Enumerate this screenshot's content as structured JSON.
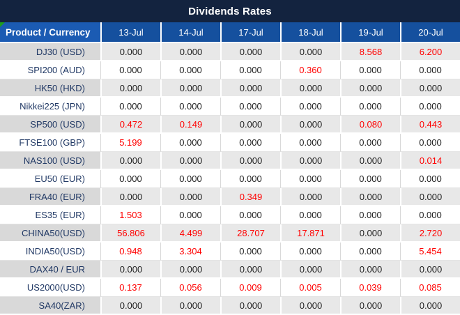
{
  "title": "Dividends Rates",
  "colors": {
    "title_bg": "#13233F",
    "header_bg": "#15509E",
    "product_header_bg": "#1B5BB3",
    "row_gray": "#E8E8E8",
    "product_gray": "#D9D9D9",
    "product_text": "#203864",
    "value_red": "#FF0000",
    "flag_green": "#1E9E1E"
  },
  "table": {
    "header": [
      "Product / Currency",
      "13-Jul",
      "14-Jul",
      "17-Jul",
      "18-Jul",
      "19-Jul",
      "20-Jul"
    ],
    "rows": [
      {
        "product": "DJ30 (USD)",
        "values": [
          "0.000",
          "0.000",
          "0.000",
          "0.000",
          "8.568",
          "6.200"
        ]
      },
      {
        "product": "SPI200 (AUD)",
        "values": [
          "0.000",
          "0.000",
          "0.000",
          "0.360",
          "0.000",
          "0.000"
        ]
      },
      {
        "product": "HK50 (HKD)",
        "values": [
          "0.000",
          "0.000",
          "0.000",
          "0.000",
          "0.000",
          "0.000"
        ]
      },
      {
        "product": "Nikkei225 (JPN)",
        "values": [
          "0.000",
          "0.000",
          "0.000",
          "0.000",
          "0.000",
          "0.000"
        ]
      },
      {
        "product": "SP500 (USD)",
        "values": [
          "0.472",
          "0.149",
          "0.000",
          "0.000",
          "0.080",
          "0.443"
        ]
      },
      {
        "product": "FTSE100 (GBP)",
        "values": [
          "5.199",
          "0.000",
          "0.000",
          "0.000",
          "0.000",
          "0.000"
        ]
      },
      {
        "product": "NAS100 (USD)",
        "values": [
          "0.000",
          "0.000",
          "0.000",
          "0.000",
          "0.000",
          "0.014"
        ]
      },
      {
        "product": "EU50 (EUR)",
        "values": [
          "0.000",
          "0.000",
          "0.000",
          "0.000",
          "0.000",
          "0.000"
        ]
      },
      {
        "product": "FRA40 (EUR)",
        "values": [
          "0.000",
          "0.000",
          "0.349",
          "0.000",
          "0.000",
          "0.000"
        ]
      },
      {
        "product": "ES35 (EUR)",
        "values": [
          "1.503",
          "0.000",
          "0.000",
          "0.000",
          "0.000",
          "0.000"
        ]
      },
      {
        "product": "CHINA50(USD)",
        "values": [
          "56.806",
          "4.499",
          "28.707",
          "17.871",
          "0.000",
          "2.720"
        ]
      },
      {
        "product": "INDIA50(USD)",
        "values": [
          "0.948",
          "3.304",
          "0.000",
          "0.000",
          "0.000",
          "5.454"
        ]
      },
      {
        "product": "DAX40 / EUR",
        "values": [
          "0.000",
          "0.000",
          "0.000",
          "0.000",
          "0.000",
          "0.000"
        ]
      },
      {
        "product": "US2000(USD)",
        "values": [
          "0.137",
          "0.056",
          "0.009",
          "0.005",
          "0.039",
          "0.085"
        ]
      },
      {
        "product": "SA40(ZAR)",
        "values": [
          "0.000",
          "0.000",
          "0.000",
          "0.000",
          "0.000",
          "0.000"
        ]
      }
    ]
  }
}
